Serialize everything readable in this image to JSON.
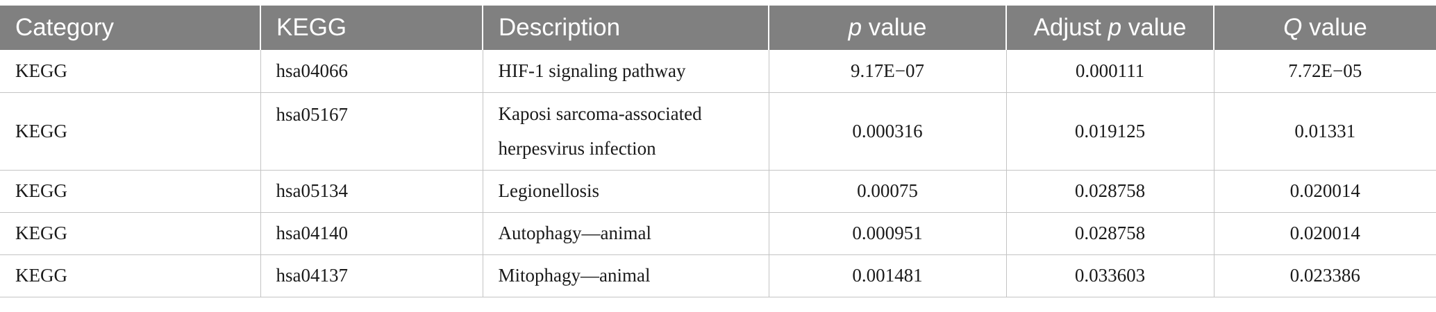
{
  "table": {
    "headers": {
      "category": "Category",
      "kegg": "KEGG",
      "description": "Description",
      "p_value_italic": "p",
      "p_value_rest": " value",
      "adjust_prefix": "Adjust ",
      "adjust_italic": "p",
      "adjust_rest": " value",
      "q_italic": "Q",
      "q_rest": " value"
    },
    "rows": [
      {
        "category": "KEGG",
        "kegg": "hsa04066",
        "description": "HIF-1 signaling pathway",
        "p_value": "9.17E−07",
        "adjust_p_value": "0.000111",
        "q_value": "7.72E−05"
      },
      {
        "category": "KEGG",
        "kegg": "hsa05167",
        "description_line1": "Kaposi sarcoma-associated",
        "description_line2": "herpesvirus infection",
        "p_value": "0.000316",
        "adjust_p_value": "0.019125",
        "q_value": "0.01331"
      },
      {
        "category": "KEGG",
        "kegg": "hsa05134",
        "description": "Legionellosis",
        "p_value": "0.00075",
        "adjust_p_value": "0.028758",
        "q_value": "0.020014"
      },
      {
        "category": "KEGG",
        "kegg": "hsa04140",
        "description": "Autophagy—animal",
        "p_value": "0.000951",
        "adjust_p_value": "0.028758",
        "q_value": "0.020014"
      },
      {
        "category": "KEGG",
        "kegg": "hsa04137",
        "description": "Mitophagy—animal",
        "p_value": "0.001481",
        "adjust_p_value": "0.033603",
        "q_value": "0.023386"
      }
    ]
  }
}
